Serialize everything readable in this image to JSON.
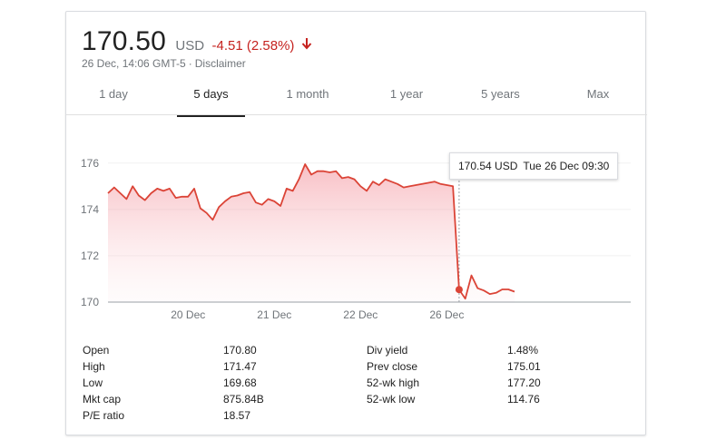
{
  "header": {
    "price": "170.50",
    "currency": "USD",
    "change": "-4.51 (2.58%)",
    "timestamp": "26 Dec, 14:06 GMT-5",
    "separator": "·",
    "disclaimer": "Disclaimer",
    "change_color": "#c5221f"
  },
  "tabs": [
    {
      "label": "1 day",
      "active": false
    },
    {
      "label": "5 days",
      "active": true
    },
    {
      "label": "1 month",
      "active": false
    },
    {
      "label": "1 year",
      "active": false
    },
    {
      "label": "5 years",
      "active": false
    },
    {
      "label": "Max",
      "active": false
    }
  ],
  "tooltip": {
    "value": "170.54 USD",
    "date": "Tue 26 Dec 09:30",
    "point_index": 57
  },
  "chart_data": {
    "type": "area",
    "line_color": "#db4437",
    "grid": true,
    "ylim": [
      170,
      176.5
    ],
    "y_ticks": [
      170,
      172,
      174,
      176
    ],
    "y_tick_labels": [
      "170",
      "172",
      "174",
      "176"
    ],
    "x_tick_labels": [
      "20 Dec",
      "21 Dec",
      "22 Dec",
      "26 Dec"
    ],
    "x_tick_index": [
      13,
      27,
      41,
      55
    ],
    "series": [
      {
        "values": [
          174.7,
          174.95,
          174.7,
          174.45,
          175.0,
          174.6,
          174.4,
          174.7,
          174.9,
          174.8,
          174.9,
          174.5,
          174.55,
          174.55,
          174.9,
          174.05,
          173.85,
          173.55,
          174.1,
          174.35,
          174.55,
          174.6,
          174.7,
          174.75,
          174.3,
          174.2,
          174.45,
          174.35,
          174.15,
          174.9,
          174.8,
          175.3,
          175.95,
          175.5,
          175.65,
          175.65,
          175.6,
          175.65,
          175.35,
          175.4,
          175.3,
          175.0,
          174.8,
          175.2,
          175.05,
          175.3,
          175.2,
          175.1,
          174.95,
          175.0,
          175.05,
          175.1,
          175.15,
          175.2,
          175.1,
          175.05,
          175.0,
          170.54,
          170.15,
          171.15,
          170.6,
          170.5,
          170.35,
          170.4,
          170.55,
          170.55,
          170.45
        ]
      }
    ]
  },
  "stats": {
    "left": [
      {
        "label": "Open",
        "value": "170.80"
      },
      {
        "label": "High",
        "value": "171.47"
      },
      {
        "label": "Low",
        "value": "169.68"
      },
      {
        "label": "Mkt cap",
        "value": "875.84B"
      },
      {
        "label": "P/E ratio",
        "value": "18.57"
      }
    ],
    "right": [
      {
        "label": "Div yield",
        "value": "1.48%"
      },
      {
        "label": "Prev close",
        "value": "175.01"
      },
      {
        "label": "52-wk high",
        "value": "177.20"
      },
      {
        "label": "52-wk low",
        "value": "114.76"
      }
    ]
  }
}
